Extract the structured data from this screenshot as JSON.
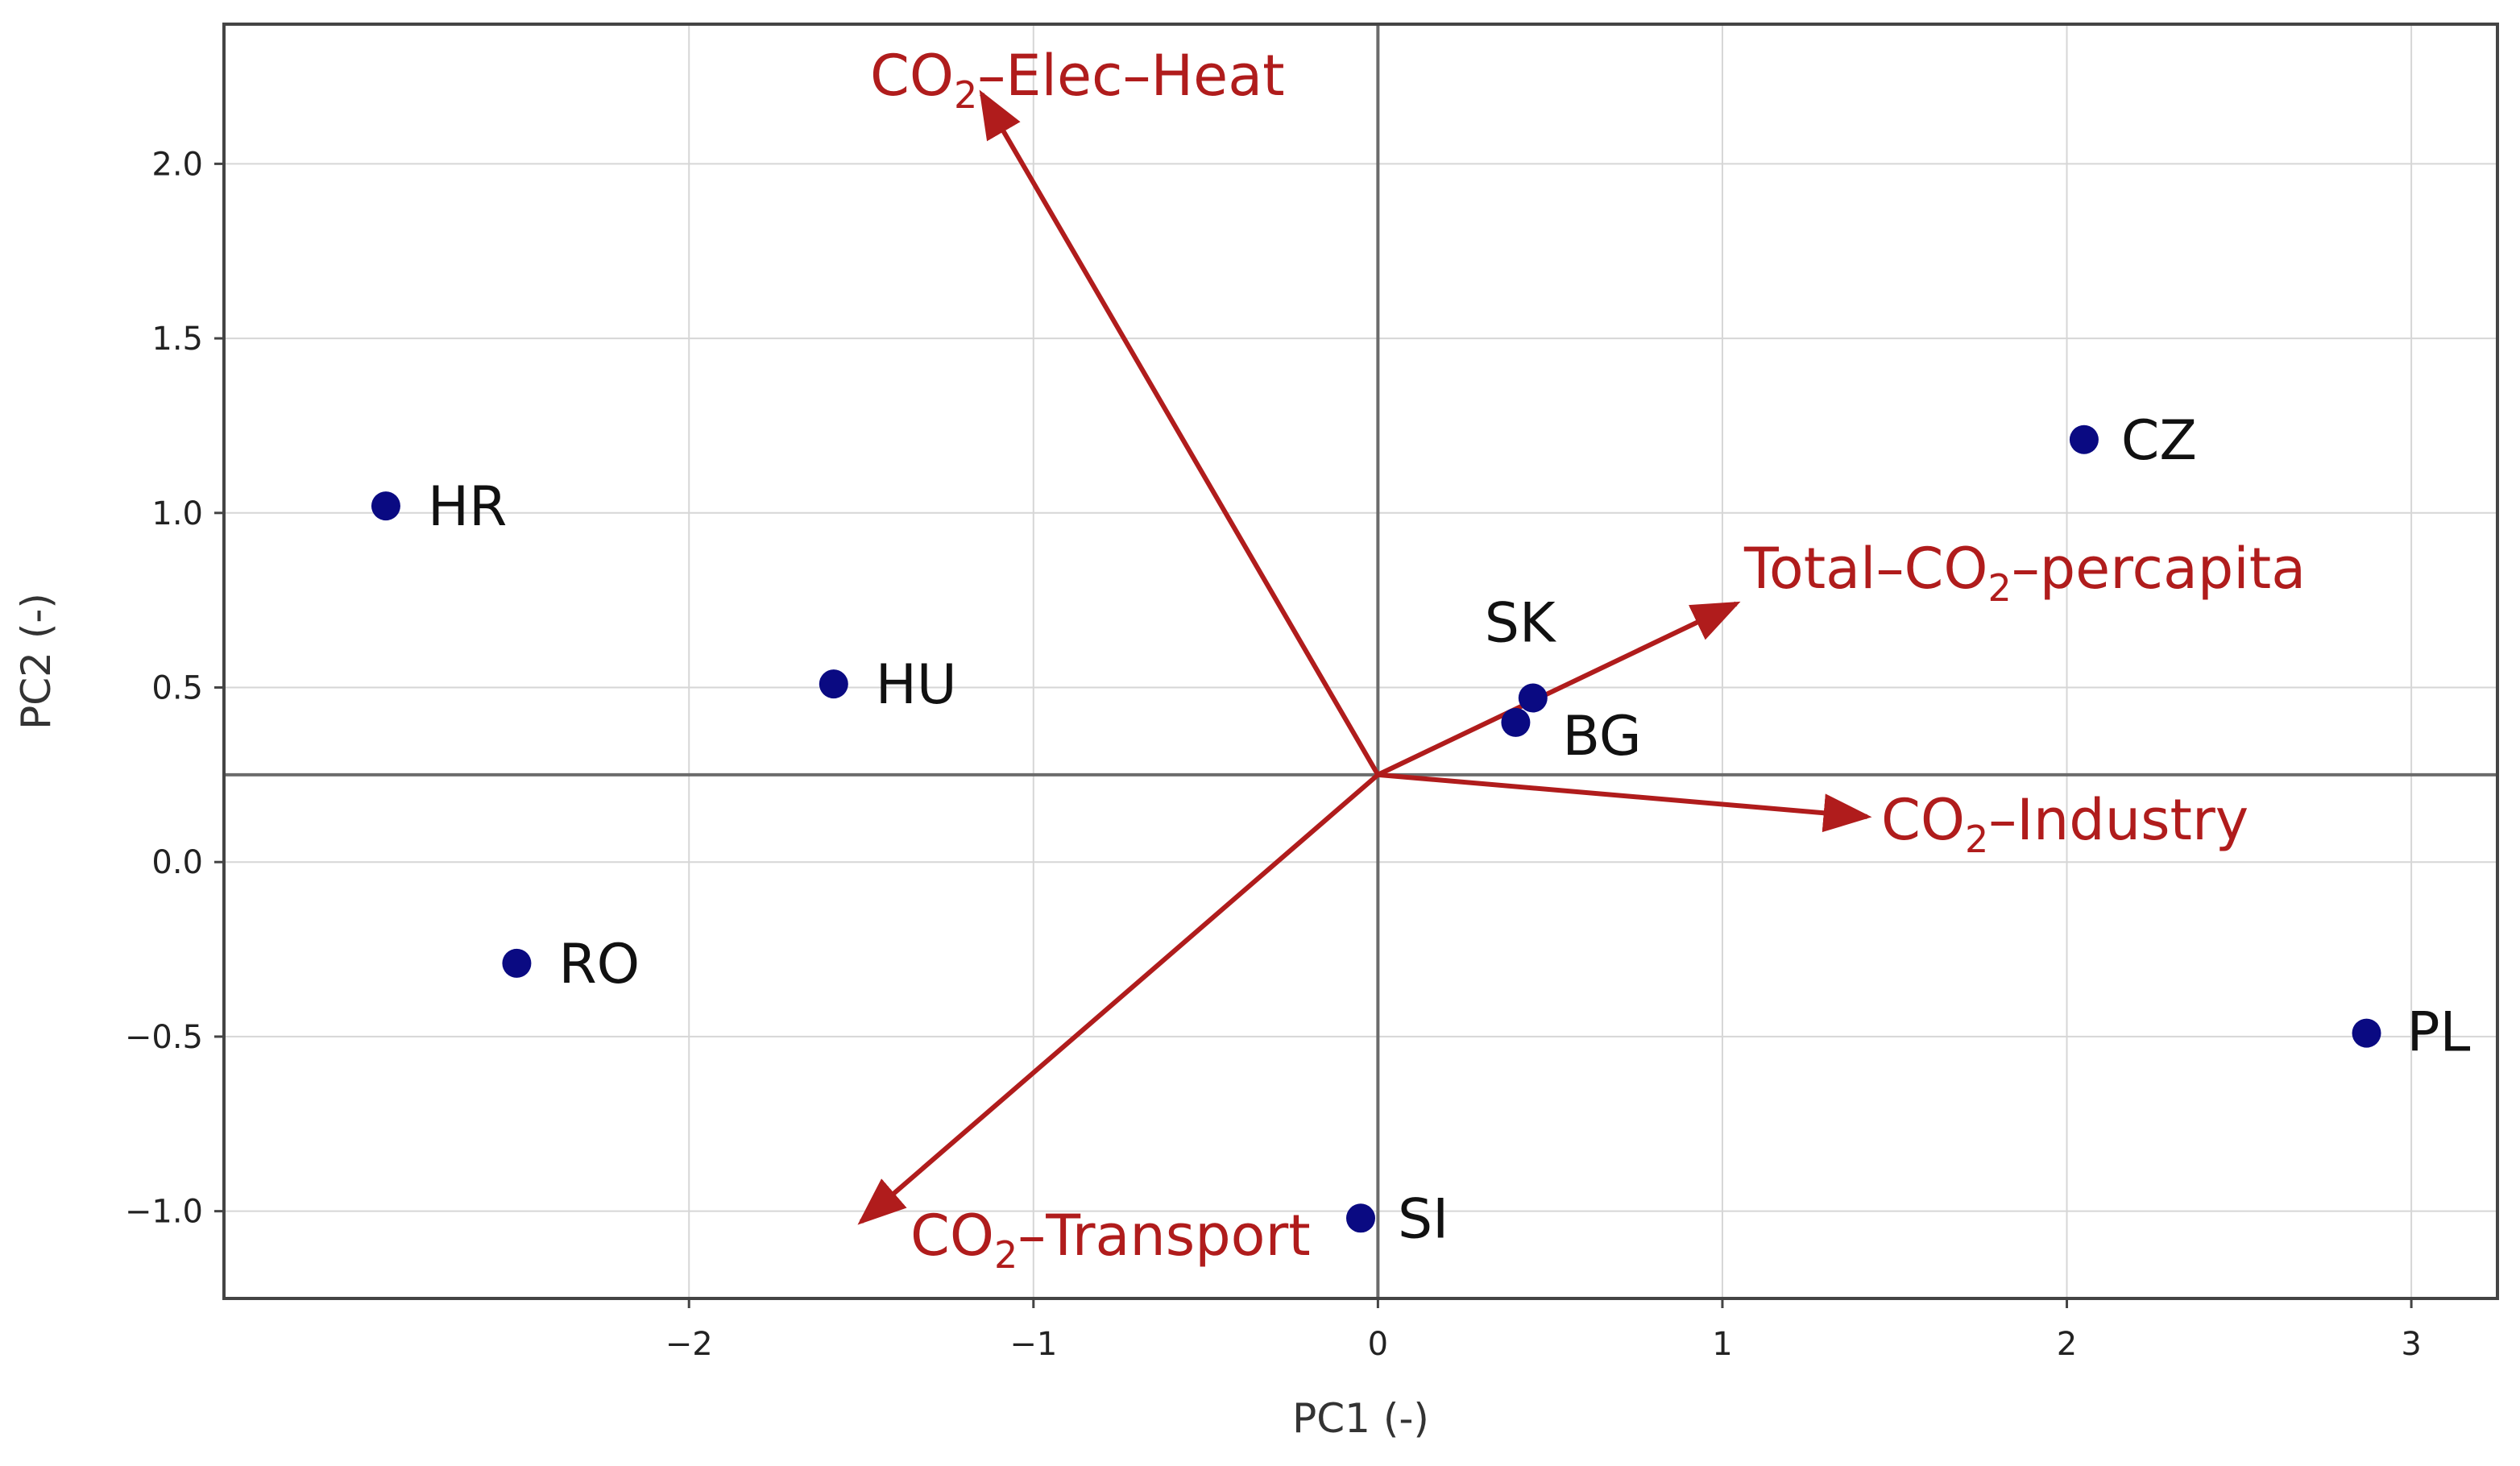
{
  "chart_data": {
    "type": "scatter",
    "subtype": "pca-biplot",
    "title": "",
    "xlabel": "PC1 (-)",
    "ylabel": "PC2 (-)",
    "xlim": [
      -3.35,
      3.25
    ],
    "ylim": [
      -1.25,
      2.4
    ],
    "x_ticks": [
      -2,
      -1,
      0,
      1,
      2,
      3
    ],
    "x_tick_labels": [
      "−2",
      "−1",
      "0",
      "1",
      "2",
      "3"
    ],
    "y_ticks": [
      -1.0,
      -0.5,
      0.0,
      0.5,
      1.0,
      1.5,
      2.0
    ],
    "y_tick_labels": [
      "−1.0",
      "−0.5",
      "0.0",
      "0.5",
      "1.0",
      "1.5",
      "2.0"
    ],
    "grid": true,
    "point_color": "#0a0a82",
    "loading_color": "#b01c1c",
    "reference_lines": {
      "x": 0.0,
      "y": 0.25
    },
    "points": [
      {
        "label": "HR",
        "x": -2.88,
        "y": 1.02
      },
      {
        "label": "HU",
        "x": -1.58,
        "y": 0.51
      },
      {
        "label": "RO",
        "x": -2.5,
        "y": -0.29
      },
      {
        "label": "SK",
        "x": 0.45,
        "y": 0.47
      },
      {
        "label": "BG",
        "x": 0.4,
        "y": 0.4
      },
      {
        "label": "CZ",
        "x": 2.05,
        "y": 1.21
      },
      {
        "label": "PL",
        "x": 2.87,
        "y": -0.49
      },
      {
        "label": "SI",
        "x": -0.05,
        "y": -1.02
      }
    ],
    "loadings": [
      {
        "name": "CO₂–Elec–Heat",
        "main": "CO",
        "sub": "2",
        "rest": "–Elec–Heat",
        "pre": "",
        "x": -1.15,
        "y": 2.2
      },
      {
        "name": "Total–CO₂–percapita",
        "pre": "Total–CO",
        "sub": "2",
        "rest": "–percapita",
        "main": "",
        "x": 1.04,
        "y": 0.74
      },
      {
        "name": "CO₂–Industry",
        "main": "CO",
        "sub": "2",
        "rest": "–Industry",
        "pre": "",
        "x": 1.42,
        "y": 0.13
      },
      {
        "name": "CO₂–Transport",
        "main": "CO",
        "sub": "2",
        "rest": "–Transport",
        "pre": "",
        "x": -1.5,
        "y": -1.03
      }
    ],
    "loading_origin": {
      "x": 0.0,
      "y": 0.25
    }
  }
}
